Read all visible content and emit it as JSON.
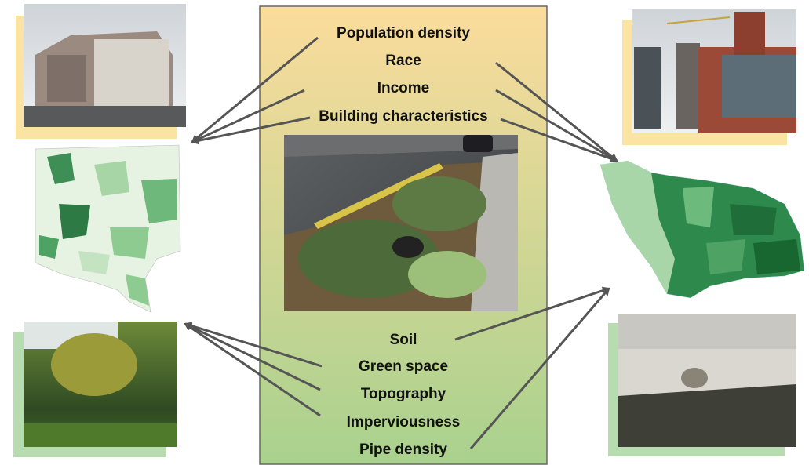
{
  "social_factors": [
    "Population density",
    "Race",
    "Income",
    "Building characteristics"
  ],
  "physical_factors": [
    "Soil",
    "Green space",
    "Topography",
    "Imperviousness",
    "Pipe density"
  ]
}
